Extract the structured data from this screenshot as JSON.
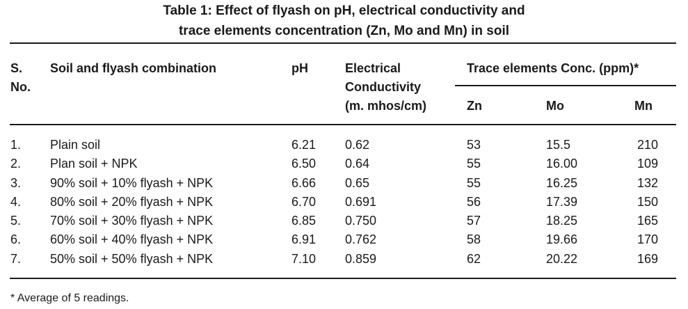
{
  "table": {
    "title_line1": "Table 1: Effect of flyash on pH, electrical conductivity and",
    "title_line2": "trace elements concentration (Zn, Mo and Mn) in soil",
    "headers": {
      "sno_line1": "S.",
      "sno_line2": "No.",
      "combination": "Soil and flyash combination",
      "ph": "pH",
      "ec_line1": "Electrical",
      "ec_line2": "Conductivity",
      "ec_line3": "(m. mhos/cm)",
      "trace": "Trace elements Conc. (ppm)*",
      "zn": "Zn",
      "mo": "Mo",
      "mn": "Mn"
    },
    "rows": [
      {
        "sno": "1.",
        "combination": "Plain soil",
        "ph": "6.21",
        "ec": "0.62",
        "zn": "53",
        "mo": "15.5",
        "mn": "210"
      },
      {
        "sno": "2.",
        "combination": "Plan soil + NPK",
        "ph": "6.50",
        "ec": "0.64",
        "zn": "55",
        "mo": "16.00",
        "mn": "109"
      },
      {
        "sno": "3.",
        "combination": "90% soil + 10% flyash + NPK",
        "ph": "6.66",
        "ec": "0.65",
        "zn": "55",
        "mo": "16.25",
        "mn": "132"
      },
      {
        "sno": "4.",
        "combination": "80% soil + 20% flyash + NPK",
        "ph": "6.70",
        "ec": "0.691",
        "zn": "56",
        "mo": "17.39",
        "mn": "150"
      },
      {
        "sno": "5.",
        "combination": "70% soil + 30% flyash + NPK",
        "ph": "6.85",
        "ec": "0.750",
        "zn": "57",
        "mo": "18.25",
        "mn": "165"
      },
      {
        "sno": "6.",
        "combination": "60% soil + 40% flyash + NPK",
        "ph": "6.91",
        "ec": "0.762",
        "zn": "58",
        "mo": "19.66",
        "mn": "170"
      },
      {
        "sno": "7.",
        "combination": "50% soil + 50% flyash + NPK",
        "ph": "7.10",
        "ec": "0.859",
        "zn": "62",
        "mo": "20.22",
        "mn": "169"
      }
    ],
    "footnote": "* Average of 5 readings."
  }
}
